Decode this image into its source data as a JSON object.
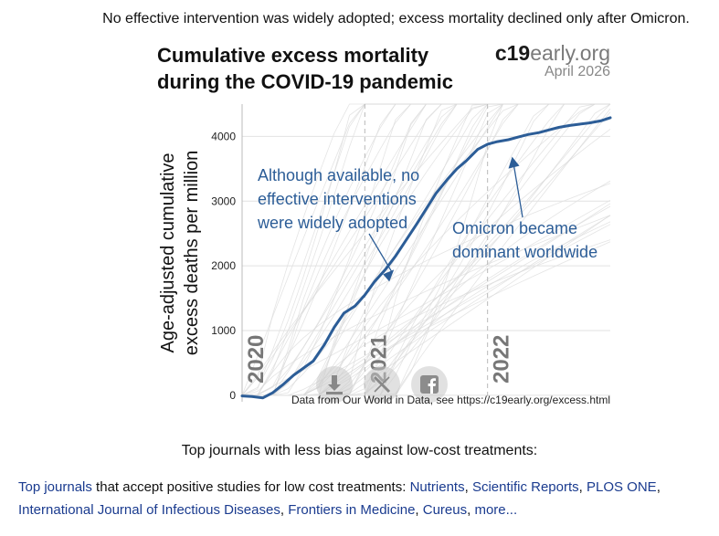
{
  "intro": "No effective intervention was widely adopted; excess mortality declined only after Omicron.",
  "brand": {
    "name_bold": "c19",
    "name_rest": "early.org",
    "date": "April 2026"
  },
  "share": {
    "download_icon": "download-icon",
    "x_icon": "x-icon",
    "facebook_icon": "facebook-icon"
  },
  "chart_data": {
    "type": "line",
    "title_line1": "Cumulative excess mortality",
    "title_line2": "during the COVID-19 pandemic",
    "ylabel_line1": "Age-adjusted cumulative",
    "ylabel_line2": "excess deaths per million",
    "ylim": [
      -100,
      4500
    ],
    "yticks": [
      0,
      1000,
      2000,
      3000,
      4000
    ],
    "xlim": [
      2020.0,
      2023.0
    ],
    "year_markers": [
      {
        "x": 2020.0,
        "label": "2020"
      },
      {
        "x": 2021.0,
        "label": "2021"
      },
      {
        "x": 2022.0,
        "label": "2022"
      }
    ],
    "grid": true,
    "series": [
      {
        "name": "Global age-adjusted cumulative excess deaths per million",
        "color": "#2c5d97",
        "x": [
          2020.0,
          2020.08,
          2020.17,
          2020.25,
          2020.33,
          2020.42,
          2020.5,
          2020.58,
          2020.67,
          2020.75,
          2020.83,
          2020.92,
          2021.0,
          2021.08,
          2021.17,
          2021.25,
          2021.33,
          2021.42,
          2021.5,
          2021.58,
          2021.67,
          2021.75,
          2021.83,
          2021.92,
          2022.0,
          2022.08,
          2022.17,
          2022.25,
          2022.33,
          2022.42,
          2022.5,
          2022.58,
          2022.67,
          2022.75,
          2022.83,
          2022.92,
          2023.0
        ],
        "y": [
          -10,
          -20,
          -40,
          40,
          160,
          310,
          420,
          530,
          780,
          1050,
          1270,
          1380,
          1550,
          1760,
          1950,
          2150,
          2380,
          2640,
          2880,
          3120,
          3330,
          3500,
          3630,
          3800,
          3880,
          3920,
          3950,
          3990,
          4030,
          4060,
          4100,
          4140,
          4170,
          4190,
          4210,
          4240,
          4290
        ]
      }
    ],
    "annotations": [
      {
        "line1": "Although available, no",
        "line2": "effective interventions",
        "line3": "were widely adopted",
        "x": 2021.2,
        "y": 1800
      },
      {
        "line1": "Omicron became",
        "line2": "dominant worldwide",
        "x": 2022.2,
        "y": 3800
      }
    ],
    "source": "Data from Our World in Data, see https://c19early.org/excess.html"
  },
  "journals": {
    "heading": "Top journals with less bias against low-cost treatments:",
    "link_lead": "Top journals",
    "lead_text": " that accept positive studies for low cost treatments: ",
    "links": [
      "Nutrients",
      "Scientific Reports",
      "PLOS ONE",
      "International Journal of Infectious Diseases",
      "Frontiers in Medicine",
      "Cureus",
      "more..."
    ]
  }
}
